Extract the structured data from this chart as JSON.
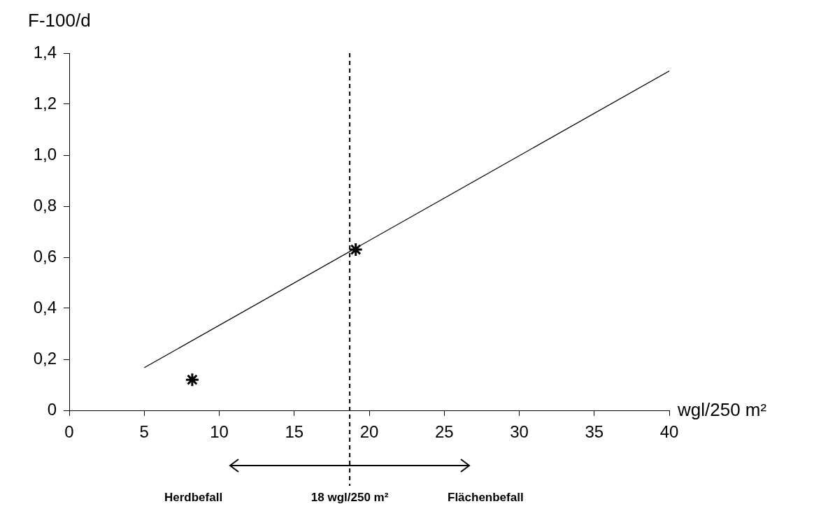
{
  "chart_data": {
    "type": "line",
    "xlabel": "wgl/250 m²",
    "ylabel": "F-100/d",
    "xlim": [
      0,
      40
    ],
    "xticks": [
      0,
      5,
      10,
      15,
      20,
      25,
      30,
      35,
      40
    ],
    "ylim": [
      0,
      1.4
    ],
    "yticks": [
      0,
      {
        "value": 0.2,
        "label": "0,2"
      },
      {
        "value": 0.4,
        "label": "0,4"
      },
      {
        "value": 0.6,
        "label": "0,6"
      },
      {
        "value": 0.8,
        "label": "0,8"
      },
      {
        "value": 1.0,
        "label": "1,0"
      },
      {
        "value": 1.2,
        "label": "1,2"
      },
      {
        "value": 1.4,
        "label": "1,4"
      }
    ],
    "series": [
      {
        "type": "line",
        "color": "#000000",
        "x": [
          5,
          40
        ],
        "values": [
          0.167,
          1.33
        ],
        "marker": "none"
      },
      {
        "type": "scatter",
        "color": "#000000",
        "x": [
          8.2,
          19.1
        ],
        "values": [
          0.12,
          0.63
        ],
        "marker": "cross"
      }
    ],
    "ref_lines": [
      {
        "axis": "x",
        "value": 18.7,
        "label": "18 wgl/250 m²",
        "line_style": "dashed",
        "color": "#000000"
      }
    ],
    "annotations": [
      "Herdbefall",
      "Flächenbefall"
    ],
    "grid": false,
    "legend": false
  }
}
